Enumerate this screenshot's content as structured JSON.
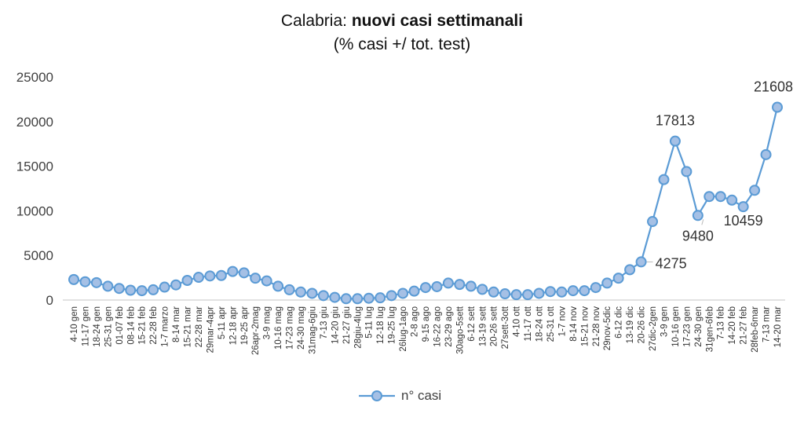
{
  "header": {
    "title_region": "Calabria:",
    "title_bold": "nuovi casi settimanali",
    "subtitle": "(% casi +/ tot. test)"
  },
  "legend": {
    "label": "n° casi",
    "marker": "circle-line-marker"
  },
  "colors": {
    "line": "#5B9BD5",
    "marker_fill": "#A5C0E5",
    "marker_stroke": "#5B9BD5",
    "axis": "#D9D9D9"
  },
  "chart_data": {
    "type": "line",
    "title": "Calabria: nuovi casi settimanali",
    "subtitle": "(% casi +/ tot. test)",
    "xlabel": "",
    "ylabel": "",
    "ylim": [
      0,
      25000
    ],
    "yticks": [
      0,
      5000,
      10000,
      15000,
      20000,
      25000
    ],
    "grid": false,
    "legend_position": "bottom",
    "categories": [
      "4-10 gen",
      "11-17 gen",
      "18-24 gen",
      "25-31 gen",
      "01-07 feb",
      "08-14 feb",
      "15-21 feb",
      "22-28 feb",
      "1-7 marzo",
      "8-14 mar",
      "15-21 mar",
      "22-28 mar",
      "29mar-4apr",
      "5-11 apr",
      "12-18 apr",
      "19-25 apr",
      "26apr-2mag",
      "3-9 mag",
      "10-16 mag",
      "17-23 mag",
      "24-30 mag",
      "31mag-6giu",
      "7-13 giu",
      "14-20 giu",
      "21-27 giu",
      "28giu-4lug",
      "5-11 lug",
      "12-18 lug",
      "19-25 lug",
      "26lug-1ago",
      "2-8 ago",
      "9-15 ago",
      "16-22 ago",
      "23-29 ago",
      "30ago-5sett",
      "6-12 sett",
      "13-19 sett",
      "20-26 sett",
      "27sett-3ott",
      "4-10 ott",
      "11-17 ott",
      "18-24 ott",
      "25-31 ott",
      "1-7 nov",
      "8-14 nov",
      "15-21 nov",
      "21-28 nov",
      "29nov-5dic",
      "6-12 dic",
      "13-19 dic",
      "20-26 dic",
      "27dic-2gen",
      "3-9 gen",
      "10-16 gen",
      "17-23 gen",
      "24-30 gen",
      "31gen-6feb",
      "7-13 feb",
      "14-20 feb",
      "21-27 feb",
      "28feb-6mar",
      "7-13 mar",
      "14-20 mar"
    ],
    "series": [
      {
        "name": "n° casi",
        "values": [
          2300,
          2050,
          1950,
          1550,
          1300,
          1100,
          1050,
          1150,
          1450,
          1700,
          2200,
          2550,
          2700,
          2750,
          3200,
          3050,
          2450,
          2150,
          1550,
          1150,
          900,
          750,
          500,
          300,
          150,
          150,
          200,
          250,
          500,
          750,
          1000,
          1400,
          1500,
          1900,
          1750,
          1550,
          1200,
          900,
          700,
          600,
          600,
          750,
          950,
          900,
          1050,
          1050,
          1400,
          1900,
          2450,
          3400,
          4275,
          8800,
          13500,
          17813,
          14400,
          9480,
          11600,
          11600,
          11200,
          10459,
          12300,
          16300,
          21608
        ]
      }
    ],
    "data_labels": [
      {
        "category": "20-26 dic",
        "value": 4275,
        "text": "4275"
      },
      {
        "category": "10-16 gen",
        "value": 17813,
        "text": "17813"
      },
      {
        "category": "24-30 gen",
        "value": 9480,
        "text": "9480"
      },
      {
        "category": "21-27 feb",
        "value": 10459,
        "text": "10459"
      },
      {
        "category": "14-20 mar",
        "value": 21608,
        "text": "21608"
      }
    ]
  }
}
